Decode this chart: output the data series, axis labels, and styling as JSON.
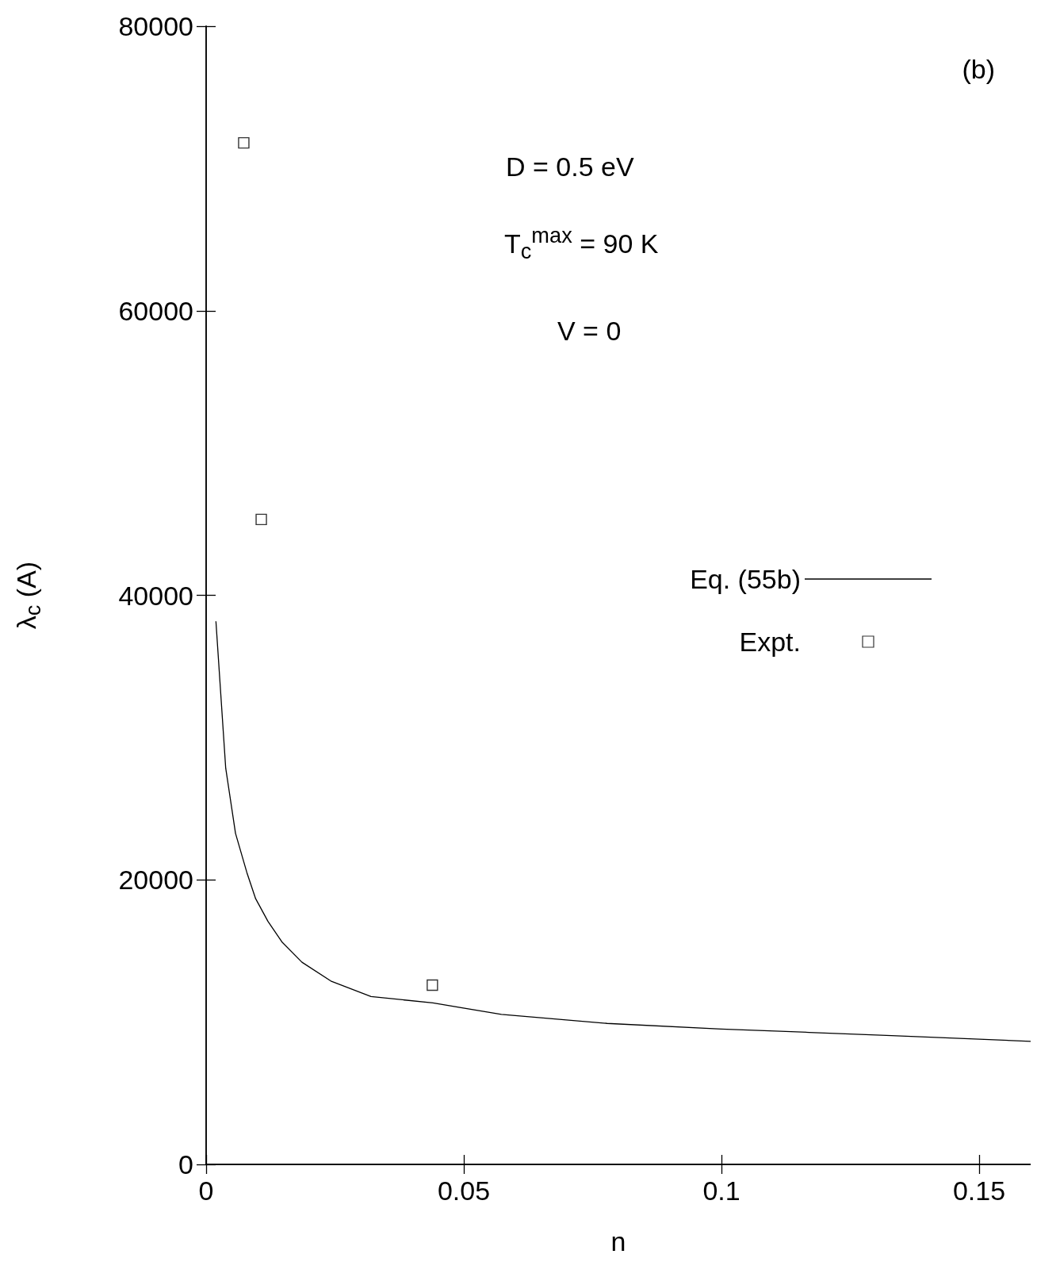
{
  "chart_data": {
    "type": "line",
    "xlabel": "n",
    "ylabel": "λ$_{c}$ (A)",
    "xlim": [
      0,
      0.16
    ],
    "xticks": [
      0,
      0.05,
      0.1,
      0.15
    ],
    "ylim": [
      0,
      80000
    ],
    "yticks": [
      0,
      20000,
      40000,
      60000,
      80000
    ],
    "grid": false,
    "legend": "right",
    "annotations": [
      "(b)",
      "D = 0.5 eV",
      "T$_{c}$$^{max}$ = 90 K",
      "V = 0"
    ],
    "series": [
      {
        "name": "Eq. (55b)",
        "color": "#000000",
        "marker": "none",
        "x": [
          0.0019,
          0.0038,
          0.0057,
          0.0079,
          0.0096,
          0.012,
          0.0147,
          0.0186,
          0.0242,
          0.032,
          0.044,
          0.0573,
          0.0778,
          0.1,
          0.117,
          0.133,
          0.16
        ],
        "values": [
          38170,
          27850,
          23270,
          20520,
          18680,
          17080,
          15640,
          14210,
          12890,
          11800,
          11350,
          10540,
          9910,
          9510,
          9280,
          9050,
          8650
        ]
      },
      {
        "name": "Expt.",
        "type": "scatter",
        "color": "#000000",
        "marker": "square",
        "x": [
          0.0073,
          0.0107,
          0.0439
        ],
        "values": [
          71800,
          45330,
          12600
        ]
      }
    ]
  }
}
